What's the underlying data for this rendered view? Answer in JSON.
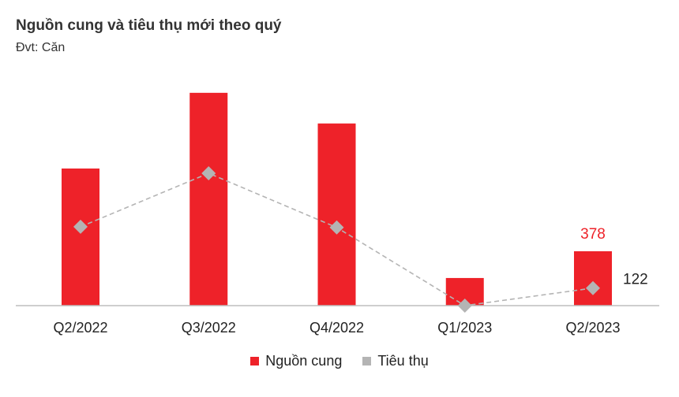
{
  "chart_data": {
    "type": "bar",
    "title": "Nguồn cung và tiêu thụ mới theo quý",
    "subtitle": "Đvt: Căn",
    "categories": [
      "Q2/2022",
      "Q3/2022",
      "Q4/2022",
      "Q1/2023",
      "Q2/2023"
    ],
    "series": [
      {
        "name": "Nguồn cung",
        "type": "bar",
        "color": "#ee2229",
        "values": [
          953,
          1479,
          1266,
          192,
          378
        ]
      },
      {
        "name": "Tiêu thụ",
        "type": "line",
        "style": "dashed",
        "marker": "diamond",
        "color": "#b4b4b4",
        "values": [
          548,
          920,
          543,
          0,
          122
        ]
      }
    ],
    "data_labels": [
      {
        "series": "Nguồn cung",
        "category": "Q2/2023",
        "text": "378",
        "color": "#ee2229"
      },
      {
        "series": "Tiêu thụ",
        "category": "Q2/2023",
        "text": "122",
        "color": "#222222"
      }
    ],
    "ylim": [
      0,
      1500
    ],
    "y_axis_visible": false,
    "grid": false,
    "legend": "bottom"
  }
}
